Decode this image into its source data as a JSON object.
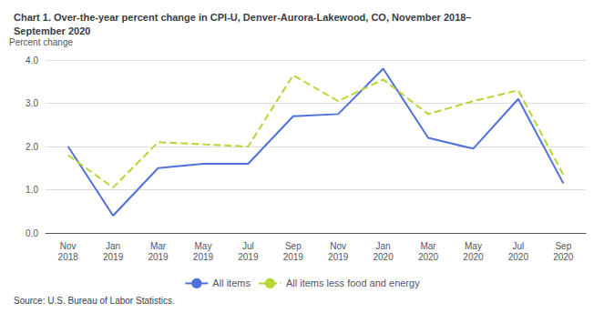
{
  "chart_data": {
    "type": "line",
    "title": "Chart 1. Over-the-year percent change in CPI-U, Denver-Aurora-Lakewood, CO, November 2018–\nSeptember 2020",
    "y_label": "Percent change",
    "source": "Source: U.S. Bureau of Labor Statistics.",
    "categories": [
      "Nov\n2018",
      "Jan\n2019",
      "Mar\n2019",
      "May\n2019",
      "Jul\n2019",
      "Sep\n2019",
      "Nov\n2019",
      "Jan\n2020",
      "Mar\n2020",
      "May\n2020",
      "Jul\n2020",
      "Sep\n2020"
    ],
    "series": [
      {
        "name": "All items",
        "line_style": "solid",
        "values": [
          2.0,
          0.4,
          1.5,
          1.6,
          1.6,
          2.7,
          2.75,
          3.8,
          2.2,
          1.95,
          3.1,
          1.15
        ]
      },
      {
        "name": "All items less food and energy",
        "line_style": "dashed",
        "values": [
          1.8,
          1.05,
          2.1,
          2.05,
          2.0,
          3.65,
          3.05,
          3.55,
          2.75,
          3.05,
          3.3,
          1.35
        ]
      }
    ],
    "ylim": [
      0.0,
      4.0
    ],
    "yticks": [
      {
        "value": 0.0,
        "label": "0.0"
      },
      {
        "value": 1.0,
        "label": "1.0"
      },
      {
        "value": 2.0,
        "label": "2.0"
      },
      {
        "value": 3.0,
        "label": "3.0"
      },
      {
        "value": 4.0,
        "label": "4.0"
      }
    ],
    "grid": true,
    "legend": "bottom",
    "marker": "none"
  }
}
